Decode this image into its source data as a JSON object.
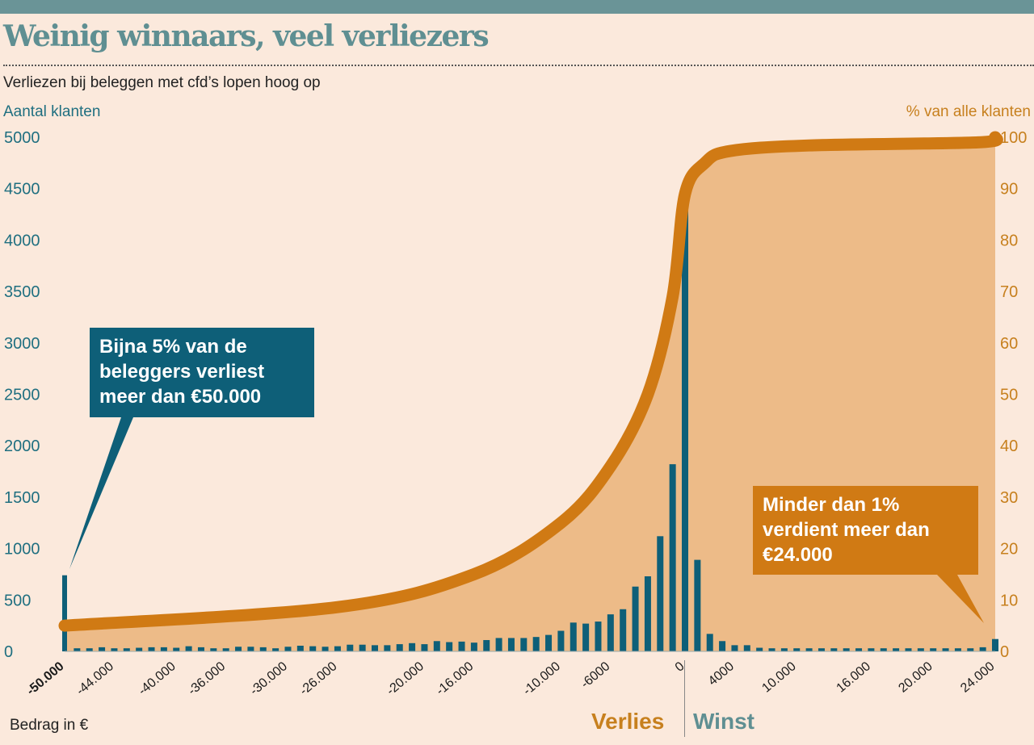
{
  "header": {
    "title": "Weinig winnaars, veel verliezers",
    "subtitle": "Verliezen bij beleggen met cfd’s lopen hoog op"
  },
  "chart_data": {
    "type": "bar+line",
    "title": "Weinig winnaars, veel verliezers",
    "ylabel": "Aantal klanten",
    "y2label": "% van alle klanten",
    "xlabel": "Bedrag in €",
    "ylim": [
      0,
      5000
    ],
    "y2lim": [
      0,
      100
    ],
    "yticks": [
      "0",
      "500",
      "1000",
      "1500",
      "2000",
      "2500",
      "3000",
      "3500",
      "4000",
      "4500",
      "5000"
    ],
    "y2ticks": [
      "0",
      "10",
      "20",
      "30",
      "40",
      "50",
      "60",
      "70",
      "80",
      "90",
      "100"
    ],
    "xticks": [
      {
        "label": "-50.000",
        "bin": 0,
        "bold": true
      },
      {
        "label": "-44.000",
        "bin": 4
      },
      {
        "label": "-40.000",
        "bin": 9
      },
      {
        "label": "-36.000",
        "bin": 13
      },
      {
        "label": "-30.000",
        "bin": 18
      },
      {
        "label": "-26.000",
        "bin": 22
      },
      {
        "label": "-20.000",
        "bin": 29
      },
      {
        "label": "-16.000",
        "bin": 33
      },
      {
        "label": "-10.000",
        "bin": 40
      },
      {
        "label": "-6000",
        "bin": 44
      },
      {
        "label": "0",
        "bin": 50
      },
      {
        "label": "4000",
        "bin": 54
      },
      {
        "label": "10.000",
        "bin": 59
      },
      {
        "label": "16.000",
        "bin": 65
      },
      {
        "label": "20.000",
        "bin": 70
      },
      {
        "label": "24.000",
        "bin": 75
      }
    ],
    "series": [
      {
        "name": "Aantal klanten",
        "type": "bar",
        "color": "#0e5f78",
        "values": [
          740,
          30,
          30,
          40,
          30,
          30,
          35,
          40,
          40,
          35,
          50,
          40,
          30,
          30,
          45,
          45,
          40,
          30,
          45,
          55,
          50,
          45,
          50,
          65,
          65,
          60,
          60,
          70,
          80,
          70,
          100,
          90,
          95,
          85,
          110,
          130,
          130,
          130,
          140,
          160,
          200,
          280,
          270,
          290,
          360,
          410,
          630,
          730,
          1120,
          1820,
          4350,
          890,
          170,
          100,
          60,
          60,
          35,
          30,
          30,
          30,
          30,
          30,
          30,
          30,
          30,
          30,
          30,
          30,
          30,
          30,
          30,
          30,
          30,
          30,
          40,
          120
        ]
      },
      {
        "name": "% van alle klanten (cumulatief)",
        "type": "line",
        "color": "#d07a14",
        "points": [
          [
            0,
            5
          ],
          [
            22,
            8.6
          ],
          [
            33,
            15
          ],
          [
            40,
            25
          ],
          [
            44,
            36
          ],
          [
            47,
            50
          ],
          [
            49,
            69
          ],
          [
            50,
            89
          ],
          [
            51.6,
            95
          ],
          [
            53.6,
            97.3
          ],
          [
            60,
            98.4
          ],
          [
            73.6,
            99
          ],
          [
            75,
            100
          ]
        ]
      }
    ],
    "legend": {
      "loss": "Verlies",
      "gain": "Winst"
    },
    "annotations": [
      "Bijna 5% van de beleggers verliest meer dan €50.000",
      "Minder dan 1% verdient meer dan €24.000"
    ]
  },
  "colors": {
    "bars": "#0e5f78",
    "line": "#d07a14",
    "fill": "#edbb88",
    "bg": "#fbe9dc",
    "teal": "#5f8f92"
  }
}
